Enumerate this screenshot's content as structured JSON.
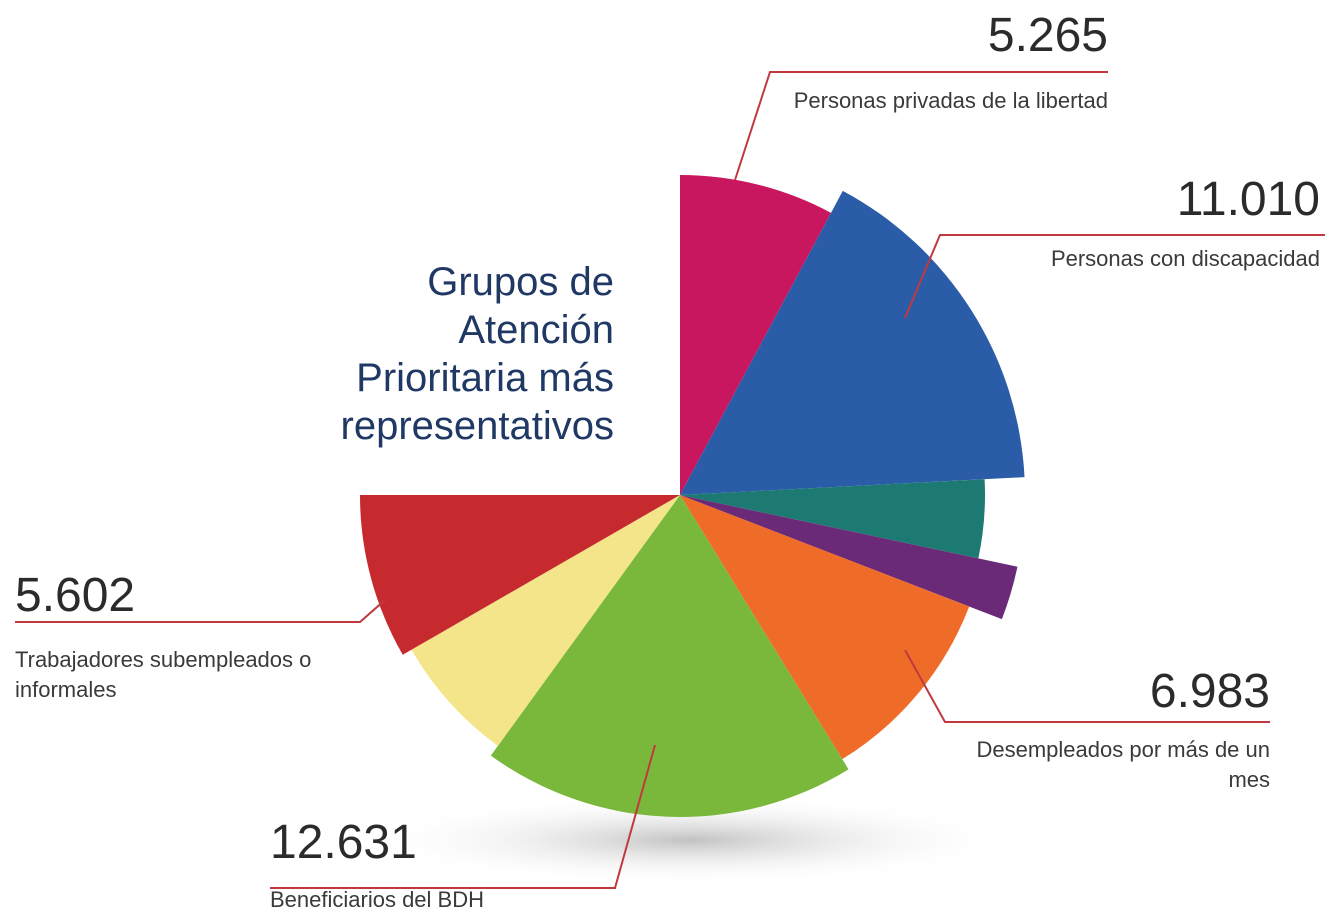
{
  "chart_data": {
    "type": "pie",
    "title": "Grupos de Atención Prioritaria más representativos",
    "categories": [
      "Personas privadas de la libertad",
      "Personas con discapacidad",
      null,
      null,
      "Desempleados por más de un mes",
      "Beneficiarios del BDH",
      null,
      "Trabajadores subempleados o informales"
    ],
    "values": [
      5265,
      11010,
      2800,
      1700,
      6983,
      12631,
      4500,
      5602
    ],
    "value_labels": [
      "5.265",
      "11.010",
      null,
      null,
      "6.983",
      "12.631",
      null,
      "5.602"
    ],
    "colors": [
      "#c8175e",
      "#2a5ca8",
      "#1d7a73",
      "#6b2a78",
      "#ef6c28",
      "#7ab83b",
      "#f4e58a",
      "#c62a2e"
    ]
  }
}
